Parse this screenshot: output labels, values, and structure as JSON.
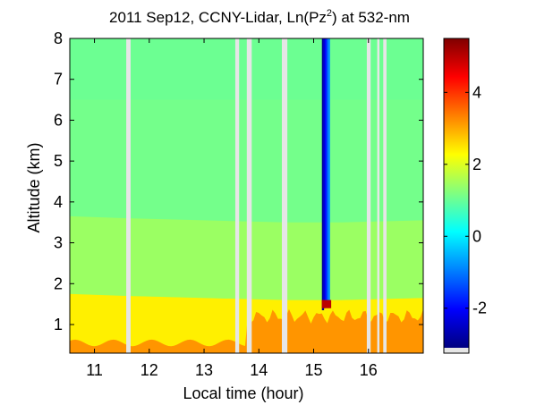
{
  "chart_data": {
    "type": "heatmap",
    "title": "2011 Sep12, CCNY-Lidar, Ln(Pz",
    "title_superscript": "2",
    "title_suffix": ") at 532-nm",
    "xlabel": "Local time (hour)",
    "ylabel": "Altitude (km)",
    "xlim": [
      10.55,
      17.0
    ],
    "ylim": [
      0.3,
      8.0
    ],
    "x_ticks": [
      11,
      12,
      13,
      14,
      15,
      16
    ],
    "y_ticks": [
      1,
      2,
      3,
      4,
      5,
      6,
      7,
      8
    ],
    "colorbar": {
      "colormap": "jet",
      "range": [
        -3.1,
        5.5
      ],
      "ticks": [
        -2,
        0,
        2,
        4
      ]
    },
    "field": {
      "background_value": 1.1,
      "upper_gradient_value": 1.0,
      "pbl_top_km": [
        {
          "x": 10.55,
          "top": 1.75
        },
        {
          "x": 11.6,
          "top": 1.7
        },
        {
          "x": 13.0,
          "top": 1.65
        },
        {
          "x": 14.5,
          "top": 1.6
        },
        {
          "x": 15.5,
          "top": 1.6
        },
        {
          "x": 17.0,
          "top": 1.65
        }
      ],
      "pbl_value": 2.4,
      "surface_layer_value": 3.3,
      "elevated_aerosol_value": 1.7
    },
    "data_gaps": [
      {
        "start": 11.58,
        "end": 11.66
      },
      {
        "start": 13.57,
        "end": 13.64
      },
      {
        "start": 13.78,
        "end": 13.87
      },
      {
        "start": 14.42,
        "end": 14.52
      },
      {
        "start": 15.97,
        "end": 16.04
      },
      {
        "start": 16.16,
        "end": 16.2
      },
      {
        "start": 16.27,
        "end": 16.33
      }
    ],
    "cloud_streaks": [
      {
        "x": 15.17,
        "from_km": 1.35,
        "to_km": 8.0,
        "value": -2.9
      },
      {
        "x": 15.19,
        "from_km": 1.4,
        "to_km": 8.0,
        "value": -2.5
      },
      {
        "x": 15.22,
        "from_km": 1.5,
        "to_km": 8.0,
        "value": -2.0
      },
      {
        "x": 15.25,
        "from_km": 1.5,
        "to_km": 8.0,
        "value": -1.4
      },
      {
        "x": 15.28,
        "from_km": 1.5,
        "to_km": 8.0,
        "value": -0.8
      }
    ],
    "cloud_base_km": 1.4,
    "cloud_base_value": 5.0
  }
}
